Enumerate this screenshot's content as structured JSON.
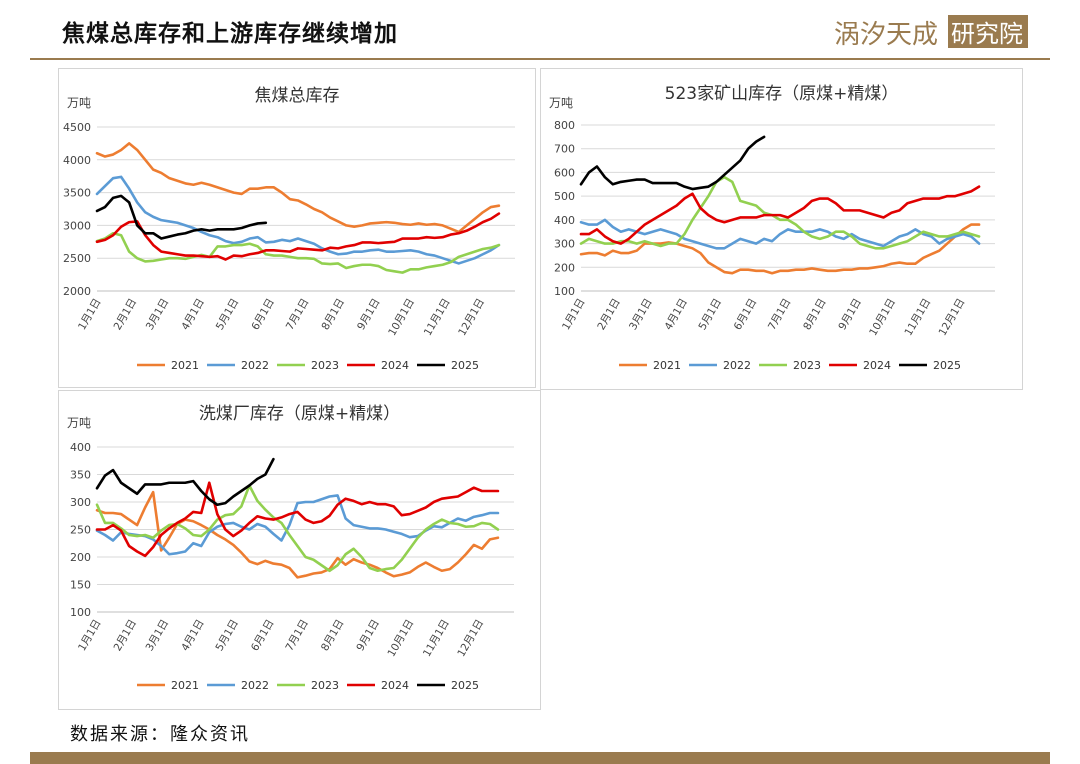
{
  "header": {
    "title": "焦煤总库存和上游库存继续增加"
  },
  "logo": {
    "text": "涡汐天成研究院"
  },
  "footer": {
    "source": "数据来源：隆众资讯"
  },
  "colors": {
    "2021": "#ED7D31",
    "2022": "#5B9BD5",
    "2023": "#92D050",
    "2024": "#E00000",
    "2025": "#000000",
    "brand": "#9A7B4F"
  },
  "chart_data": [
    {
      "type": "line",
      "title": "焦煤总库存",
      "ylabel": "万吨",
      "ylim": [
        2000,
        4500
      ],
      "yticks": [
        2000,
        2500,
        3000,
        3500,
        4000,
        4500
      ],
      "xlim": [
        0,
        52
      ],
      "x_tick_labels": [
        "1月1日",
        "2月1日",
        "3月1日",
        "4月1日",
        "5月1日",
        "6月1日",
        "7月1日",
        "8月1日",
        "9月1日",
        "10月1日",
        "11月1日",
        "12月1日"
      ],
      "x_tick_positions": [
        0,
        4.43,
        8.43,
        12.86,
        17.14,
        21.57,
        25.86,
        30.29,
        34.71,
        39.0,
        43.43,
        47.71
      ],
      "series": [
        {
          "name": "2021",
          "values": [
            4100,
            4050,
            4080,
            4150,
            4250,
            4150,
            4000,
            3850,
            3800,
            3720,
            3680,
            3640,
            3620,
            3650,
            3620,
            3580,
            3540,
            3500,
            3480,
            3560,
            3560,
            3580,
            3580,
            3500,
            3400,
            3380,
            3320,
            3250,
            3200,
            3120,
            3060,
            3000,
            2980,
            3000,
            3030,
            3040,
            3050,
            3040,
            3020,
            3010,
            3030,
            3010,
            3020,
            3000,
            2950,
            2900,
            3000,
            3100,
            3200,
            3280,
            3300
          ]
        },
        {
          "name": "2022",
          "values": [
            3480,
            3600,
            3720,
            3740,
            3560,
            3350,
            3200,
            3130,
            3080,
            3060,
            3040,
            3000,
            2960,
            2900,
            2850,
            2820,
            2760,
            2730,
            2750,
            2800,
            2820,
            2740,
            2750,
            2780,
            2760,
            2800,
            2760,
            2720,
            2650,
            2600,
            2560,
            2570,
            2600,
            2600,
            2620,
            2630,
            2600,
            2600,
            2610,
            2620,
            2600,
            2560,
            2540,
            2500,
            2460,
            2420,
            2460,
            2500,
            2560,
            2620,
            2700
          ]
        },
        {
          "name": "2023",
          "values": [
            2760,
            2800,
            2880,
            2850,
            2600,
            2500,
            2450,
            2460,
            2480,
            2500,
            2500,
            2490,
            2520,
            2550,
            2520,
            2680,
            2680,
            2700,
            2700,
            2720,
            2680,
            2560,
            2540,
            2540,
            2520,
            2500,
            2500,
            2490,
            2420,
            2410,
            2420,
            2350,
            2380,
            2400,
            2400,
            2380,
            2320,
            2300,
            2280,
            2330,
            2330,
            2360,
            2380,
            2400,
            2440,
            2520,
            2560,
            2600,
            2640,
            2660,
            2700
          ]
        },
        {
          "name": "2024",
          "values": [
            2750,
            2780,
            2850,
            2980,
            3050,
            3060,
            2850,
            2700,
            2600,
            2580,
            2560,
            2540,
            2540,
            2530,
            2520,
            2530,
            2480,
            2540,
            2530,
            2560,
            2580,
            2620,
            2620,
            2610,
            2600,
            2650,
            2640,
            2630,
            2620,
            2660,
            2650,
            2680,
            2700,
            2740,
            2740,
            2730,
            2740,
            2750,
            2800,
            2800,
            2800,
            2820,
            2810,
            2820,
            2860,
            2880,
            2920,
            2980,
            3050,
            3100,
            3180
          ]
        },
        {
          "name": "2025",
          "values": [
            3220,
            3280,
            3420,
            3450,
            3350,
            3000,
            2880,
            2880,
            2800,
            2830,
            2860,
            2880,
            2920,
            2940,
            2920,
            2940,
            2940,
            2940,
            2960,
            3000,
            3030,
            3040
          ]
        }
      ],
      "legend": [
        "2021",
        "2022",
        "2023",
        "2024",
        "2025"
      ],
      "legend_position": "bottom"
    },
    {
      "type": "line",
      "title": "523家矿山库存（原煤+精煤）",
      "ylabel": "万吨",
      "ylim": [
        100,
        800
      ],
      "yticks": [
        100,
        200,
        300,
        400,
        500,
        600,
        700,
        800
      ],
      "xlim": [
        0,
        52
      ],
      "x_tick_labels": [
        "1月1日",
        "2月1日",
        "3月1日",
        "4月1日",
        "5月1日",
        "6月1日",
        "7月1日",
        "8月1日",
        "9月1日",
        "10月1日",
        "11月1日",
        "12月1日"
      ],
      "x_tick_positions": [
        0,
        4.43,
        8.43,
        12.86,
        17.14,
        21.57,
        25.86,
        30.29,
        34.71,
        39.0,
        43.43,
        47.71
      ],
      "series": [
        {
          "name": "2021",
          "values": [
            255,
            260,
            260,
            250,
            270,
            260,
            260,
            270,
            300,
            300,
            300,
            305,
            300,
            290,
            280,
            260,
            220,
            200,
            180,
            175,
            190,
            190,
            185,
            185,
            175,
            185,
            185,
            190,
            190,
            195,
            190,
            185,
            185,
            190,
            190,
            195,
            195,
            200,
            205,
            215,
            220,
            215,
            215,
            240,
            255,
            270,
            300,
            330,
            360,
            380,
            380
          ]
        },
        {
          "name": "2022",
          "values": [
            390,
            380,
            380,
            400,
            370,
            350,
            360,
            350,
            340,
            350,
            360,
            350,
            340,
            320,
            310,
            300,
            290,
            280,
            280,
            300,
            320,
            310,
            300,
            320,
            310,
            340,
            360,
            350,
            350,
            350,
            360,
            350,
            330,
            320,
            340,
            320,
            310,
            300,
            290,
            310,
            330,
            340,
            360,
            340,
            330,
            300,
            320,
            330,
            340,
            330,
            300
          ]
        },
        {
          "name": "2023",
          "values": [
            300,
            320,
            310,
            300,
            300,
            310,
            310,
            300,
            310,
            300,
            290,
            300,
            300,
            340,
            400,
            450,
            500,
            560,
            580,
            560,
            480,
            470,
            460,
            430,
            420,
            400,
            400,
            380,
            350,
            330,
            320,
            330,
            350,
            350,
            330,
            300,
            290,
            280,
            280,
            290,
            300,
            310,
            330,
            350,
            340,
            330,
            330,
            340,
            350,
            340,
            330
          ]
        },
        {
          "name": "2024",
          "values": [
            340,
            340,
            360,
            330,
            310,
            300,
            320,
            350,
            380,
            400,
            420,
            440,
            460,
            490,
            510,
            450,
            420,
            400,
            390,
            400,
            410,
            410,
            410,
            420,
            420,
            420,
            410,
            430,
            450,
            480,
            490,
            490,
            470,
            440,
            440,
            440,
            430,
            420,
            410,
            430,
            440,
            470,
            480,
            490,
            490,
            490,
            500,
            500,
            510,
            520,
            540
          ]
        },
        {
          "name": "2025",
          "values": [
            550,
            600,
            625,
            580,
            550,
            560,
            565,
            570,
            570,
            555,
            555,
            555,
            555,
            540,
            530,
            535,
            540,
            560,
            590,
            620,
            650,
            700,
            730,
            750
          ]
        }
      ],
      "legend": [
        "2021",
        "2022",
        "2023",
        "2024",
        "2025"
      ],
      "legend_position": "bottom"
    },
    {
      "type": "line",
      "title": "洗煤厂库存（原煤+精煤）",
      "ylabel": "万吨",
      "ylim": [
        100,
        400
      ],
      "yticks": [
        100,
        150,
        200,
        250,
        300,
        350,
        400
      ],
      "xlim": [
        0,
        52
      ],
      "x_tick_labels": [
        "1月1日",
        "2月1日",
        "3月1日",
        "4月1日",
        "5月1日",
        "6月1日",
        "7月1日",
        "8月1日",
        "9月1日",
        "10月1日",
        "11月1日",
        "12月1日"
      ],
      "x_tick_positions": [
        0,
        4.43,
        8.43,
        12.86,
        17.14,
        21.57,
        25.86,
        30.29,
        34.71,
        39.0,
        43.43,
        47.71
      ],
      "series": [
        {
          "name": "2021",
          "values": [
            285,
            280,
            280,
            278,
            268,
            258,
            290,
            318,
            212,
            235,
            260,
            268,
            265,
            258,
            250,
            240,
            232,
            222,
            208,
            192,
            187,
            193,
            188,
            186,
            180,
            163,
            166,
            170,
            172,
            178,
            198,
            186,
            196,
            190,
            186,
            180,
            172,
            165,
            168,
            172,
            182,
            190,
            182,
            175,
            178,
            190,
            205,
            222,
            215,
            232,
            235
          ]
        },
        {
          "name": "2022",
          "values": [
            248,
            240,
            230,
            245,
            242,
            240,
            238,
            232,
            220,
            205,
            207,
            210,
            225,
            220,
            245,
            255,
            260,
            262,
            255,
            250,
            260,
            255,
            242,
            230,
            258,
            298,
            300,
            300,
            305,
            310,
            312,
            270,
            258,
            255,
            252,
            252,
            250,
            246,
            242,
            236,
            238,
            248,
            256,
            254,
            262,
            270,
            266,
            273,
            276,
            280,
            280
          ]
        },
        {
          "name": "2023",
          "values": [
            295,
            262,
            262,
            252,
            240,
            238,
            240,
            235,
            248,
            258,
            260,
            252,
            240,
            238,
            250,
            268,
            276,
            278,
            292,
            330,
            302,
            286,
            272,
            262,
            240,
            220,
            200,
            195,
            185,
            175,
            185,
            205,
            215,
            200,
            180,
            175,
            178,
            180,
            195,
            215,
            235,
            250,
            260,
            268,
            262,
            260,
            255,
            256,
            262,
            260,
            250
          ]
        },
        {
          "name": "2024",
          "values": [
            250,
            250,
            258,
            248,
            220,
            210,
            202,
            218,
            240,
            252,
            262,
            270,
            282,
            280,
            335,
            278,
            250,
            238,
            248,
            262,
            274,
            270,
            268,
            272,
            278,
            282,
            268,
            262,
            265,
            275,
            295,
            306,
            302,
            296,
            300,
            296,
            296,
            292,
            276,
            278,
            284,
            290,
            300,
            306,
            308,
            310,
            318,
            326,
            320,
            320,
            320
          ]
        },
        {
          "name": "2025",
          "values": [
            325,
            348,
            358,
            335,
            325,
            315,
            332,
            332,
            332,
            335,
            335,
            335,
            338,
            320,
            305,
            295,
            298,
            310,
            320,
            330,
            342,
            350,
            378
          ]
        }
      ],
      "legend": [
        "2021",
        "2022",
        "2023",
        "2024",
        "2025"
      ],
      "legend_position": "bottom"
    }
  ]
}
